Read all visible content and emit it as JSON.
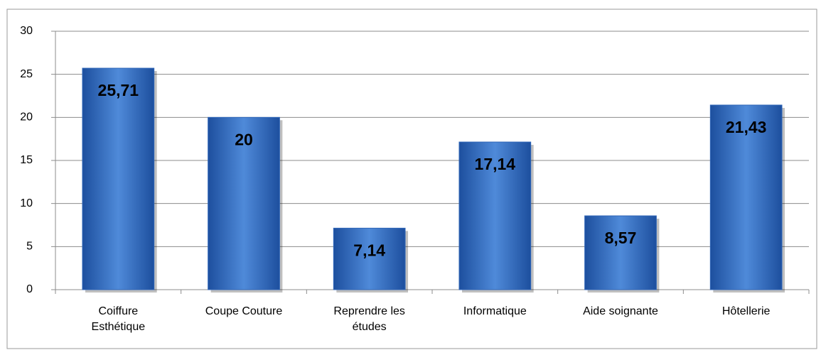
{
  "chart_data": {
    "type": "bar",
    "categories": [
      "Coiffure Esthétique",
      "Coupe Couture",
      "Reprendre les études",
      "Informatique",
      "Aide soignante",
      "Hôtellerie"
    ],
    "values": [
      25.71,
      20,
      7.14,
      17.14,
      8.57,
      21.43
    ],
    "value_labels": [
      "25,71",
      "20",
      "7,14",
      "17,14",
      "8,57",
      "21,43"
    ],
    "color": "#2f66b8",
    "ylim": [
      0,
      30
    ],
    "yticks": [
      0,
      5,
      10,
      15,
      20,
      25,
      30
    ],
    "grid": true
  }
}
